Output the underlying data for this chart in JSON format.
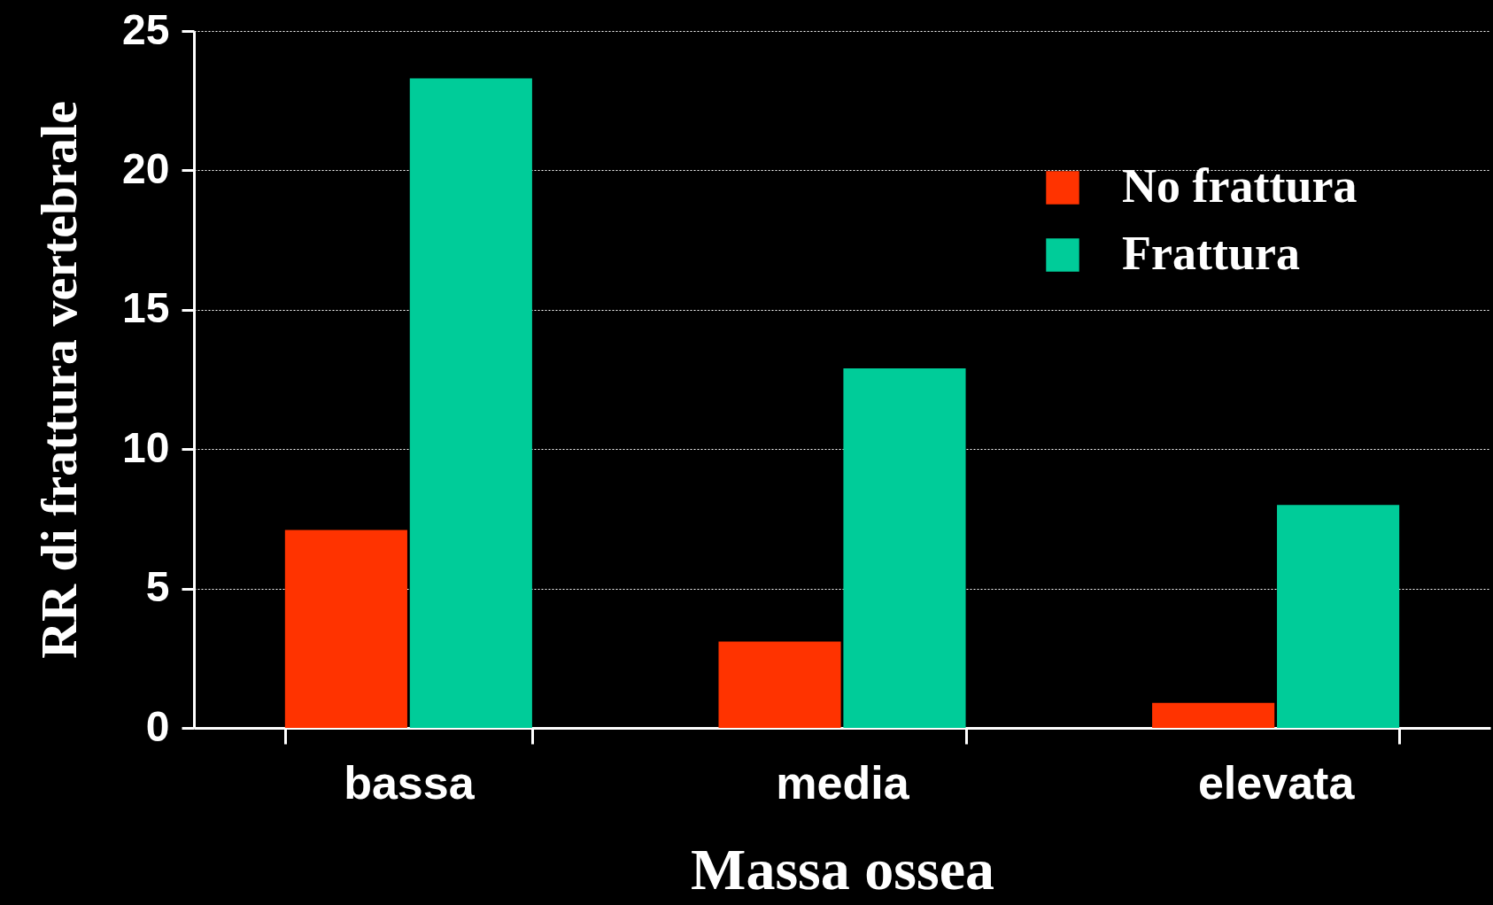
{
  "chart_data": {
    "type": "bar",
    "xlabel": "Massa ossea",
    "ylabel": "RR di frattura vertebrale",
    "categories": [
      "bassa",
      "media",
      "elevata"
    ],
    "series": [
      {
        "name": "No frattura",
        "color": "#ff3300",
        "values": [
          7.1,
          3.1,
          0.9
        ]
      },
      {
        "name": "Frattura",
        "color": "#00cc99",
        "values": [
          23.3,
          12.9,
          8.0
        ]
      }
    ],
    "ylim": [
      0,
      25
    ],
    "yticks": [
      0,
      5,
      10,
      15,
      20,
      25
    ],
    "grid": "y",
    "legend": "top right"
  }
}
